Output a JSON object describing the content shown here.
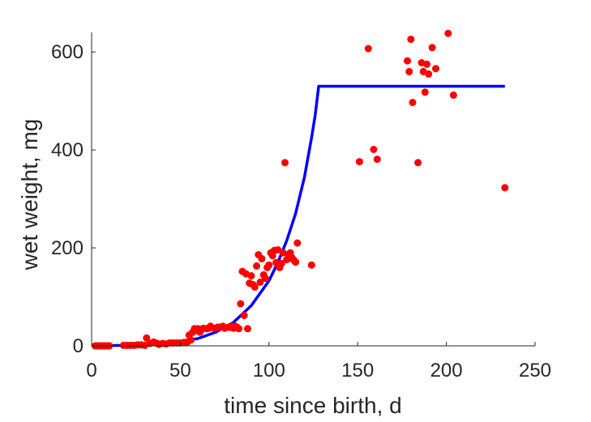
{
  "chart_data": {
    "type": "scatter",
    "xlabel": "time since birth, d",
    "ylabel": "wet weight, mg",
    "xlim": [
      0,
      250
    ],
    "ylim": [
      0,
      640
    ],
    "x_ticks": [
      0,
      50,
      100,
      150,
      200,
      250
    ],
    "x_tick_labels": [
      "0",
      "50",
      "100",
      "150",
      "200",
      "250"
    ],
    "y_ticks": [
      0,
      200,
      400,
      600
    ],
    "y_tick_labels": [
      "0",
      "200",
      "400",
      "600"
    ],
    "grid": false,
    "series": [
      {
        "kind": "points",
        "color": "#ff0000",
        "points": [
          [
            2,
            0
          ],
          [
            3,
            0
          ],
          [
            4,
            0
          ],
          [
            5,
            0
          ],
          [
            6,
            0
          ],
          [
            7,
            0
          ],
          [
            8,
            0
          ],
          [
            9,
            0
          ],
          [
            10,
            0
          ],
          [
            18,
            1
          ],
          [
            20,
            1
          ],
          [
            22,
            1
          ],
          [
            24,
            1
          ],
          [
            26,
            2
          ],
          [
            28,
            2
          ],
          [
            30,
            1
          ],
          [
            31,
            16
          ],
          [
            33,
            5
          ],
          [
            35,
            8
          ],
          [
            37,
            5
          ],
          [
            38,
            3
          ],
          [
            40,
            5
          ],
          [
            42,
            4
          ],
          [
            44,
            6
          ],
          [
            46,
            6
          ],
          [
            48,
            6
          ],
          [
            50,
            6
          ],
          [
            52,
            7
          ],
          [
            54,
            8
          ],
          [
            55,
            22
          ],
          [
            56,
            12
          ],
          [
            57,
            28
          ],
          [
            58,
            35
          ],
          [
            59,
            32
          ],
          [
            60,
            35
          ],
          [
            61,
            28
          ],
          [
            62,
            33
          ],
          [
            63,
            36
          ],
          [
            65,
            35
          ],
          [
            66,
            36
          ],
          [
            67,
            40
          ],
          [
            69,
            36
          ],
          [
            71,
            38
          ],
          [
            72,
            38
          ],
          [
            74,
            40
          ],
          [
            75,
            36
          ],
          [
            77,
            38
          ],
          [
            78,
            38
          ],
          [
            79,
            40
          ],
          [
            80,
            36
          ],
          [
            81,
            40
          ],
          [
            82,
            38
          ],
          [
            83,
            35
          ],
          [
            84,
            86
          ],
          [
            85,
            152
          ],
          [
            86,
            62
          ],
          [
            87,
            147
          ],
          [
            88,
            35
          ],
          [
            89,
            128
          ],
          [
            90,
            143
          ],
          [
            91,
            125
          ],
          [
            92,
            120
          ],
          [
            93,
            163
          ],
          [
            94,
            186
          ],
          [
            95,
            130
          ],
          [
            96,
            178
          ],
          [
            97,
            145
          ],
          [
            98,
            138
          ],
          [
            99,
            160
          ],
          [
            100,
            165
          ],
          [
            101,
            190
          ],
          [
            102,
            184
          ],
          [
            103,
            195
          ],
          [
            104,
            170
          ],
          [
            105,
            196
          ],
          [
            106,
            160
          ],
          [
            107,
            168
          ],
          [
            108,
            190
          ],
          [
            109,
            374
          ],
          [
            110,
            176
          ],
          [
            111,
            185
          ],
          [
            112,
            190
          ],
          [
            113,
            180
          ],
          [
            114,
            175
          ],
          [
            115,
            171
          ],
          [
            116,
            210
          ],
          [
            124,
            165
          ],
          [
            151,
            376
          ],
          [
            156,
            607
          ],
          [
            159,
            401
          ],
          [
            161,
            381
          ],
          [
            178,
            582
          ],
          [
            179,
            560
          ],
          [
            180,
            626
          ],
          [
            181,
            497
          ],
          [
            184,
            374
          ],
          [
            186,
            578
          ],
          [
            187,
            560
          ],
          [
            188,
            518
          ],
          [
            189,
            575
          ],
          [
            190,
            555
          ],
          [
            192,
            609
          ],
          [
            194,
            566
          ],
          [
            201,
            638
          ],
          [
            204,
            512
          ],
          [
            233,
            323
          ]
        ]
      },
      {
        "kind": "line",
        "color": "#0000ff",
        "points": [
          [
            0,
            0
          ],
          [
            20,
            1
          ],
          [
            40,
            4
          ],
          [
            50,
            8
          ],
          [
            60,
            15
          ],
          [
            70,
            28
          ],
          [
            80,
            48
          ],
          [
            90,
            82
          ],
          [
            100,
            133
          ],
          [
            105,
            170
          ],
          [
            110,
            215
          ],
          [
            115,
            270
          ],
          [
            120,
            345
          ],
          [
            124,
            425
          ],
          [
            126,
            470
          ],
          [
            128,
            530
          ],
          [
            233,
            530
          ]
        ]
      }
    ]
  }
}
